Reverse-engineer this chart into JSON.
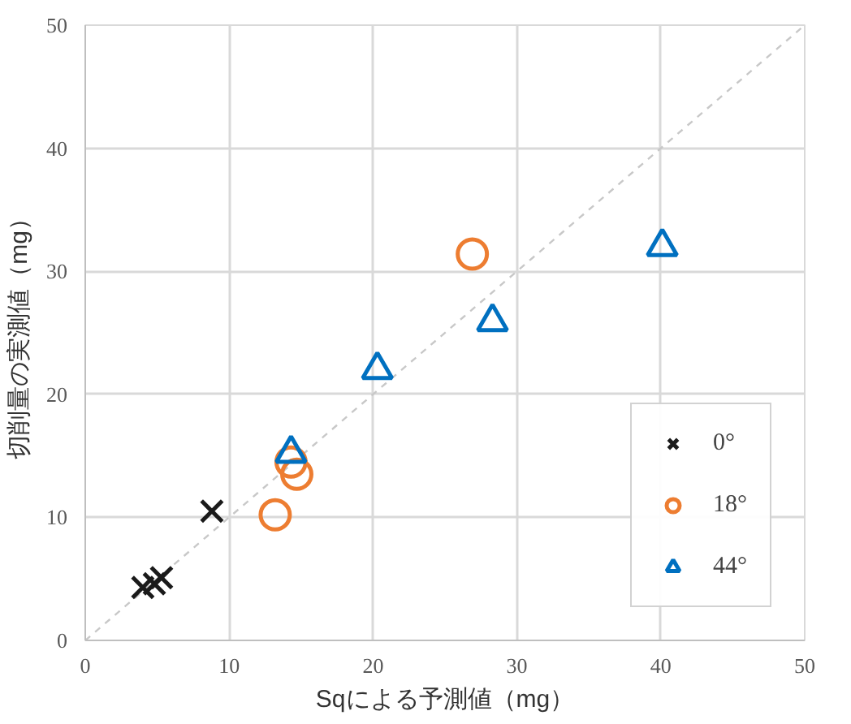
{
  "chart_data": {
    "type": "scatter",
    "xlabel": "Sqによる予測値（mg）",
    "ylabel": "切削量の実測値（mg）",
    "xlim": [
      0,
      50
    ],
    "ylim": [
      0,
      50
    ],
    "xticks": [
      0,
      10,
      20,
      30,
      40,
      50
    ],
    "yticks": [
      0,
      10,
      20,
      30,
      40,
      50
    ],
    "grid": true,
    "legend": "bottom right",
    "series": [
      {
        "type": "line",
        "color": "#c8c8c8",
        "line_style": "dashed",
        "x": [
          0,
          50
        ],
        "values": [
          0,
          50
        ]
      },
      {
        "name": "0°",
        "color": "#1a1a1a",
        "marker": "cross",
        "x": [
          4.0,
          4.8,
          5.3,
          8.8
        ],
        "values": [
          4.3,
          4.6,
          5.1,
          10.5
        ]
      },
      {
        "name": "18°",
        "color": "#ed7d31",
        "marker": "circle",
        "x": [
          13.2,
          14.3,
          14.7,
          26.9
        ],
        "values": [
          10.2,
          14.5,
          13.5,
          31.4
        ]
      },
      {
        "name": "44°",
        "color": "#0070c0",
        "marker": "triangle",
        "x": [
          14.3,
          20.3,
          28.3,
          40.1
        ],
        "values": [
          15.2,
          22.0,
          25.9,
          32.0
        ]
      }
    ]
  }
}
